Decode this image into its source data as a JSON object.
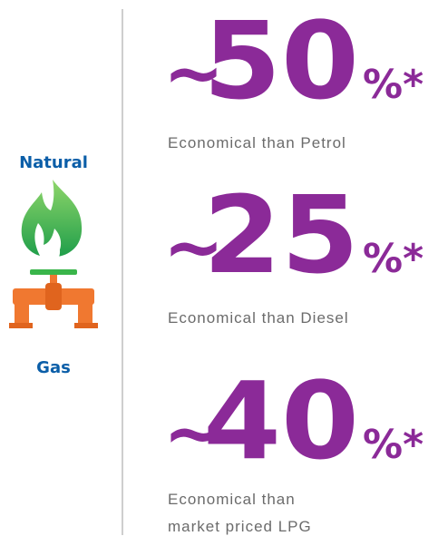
{
  "left": {
    "top": "Natural",
    "bottom": "Gas"
  },
  "stats": [
    {
      "prefix": "~",
      "value": 50,
      "suffix": "%*",
      "caption": [
        "Economical than Petrol"
      ]
    },
    {
      "prefix": "~",
      "value": 25,
      "suffix": "%*",
      "caption": [
        "Economical than Diesel"
      ]
    },
    {
      "prefix": "~",
      "value": 40,
      "suffix": "%*",
      "caption": [
        "Economical than",
        "market priced LPG"
      ]
    }
  ]
}
